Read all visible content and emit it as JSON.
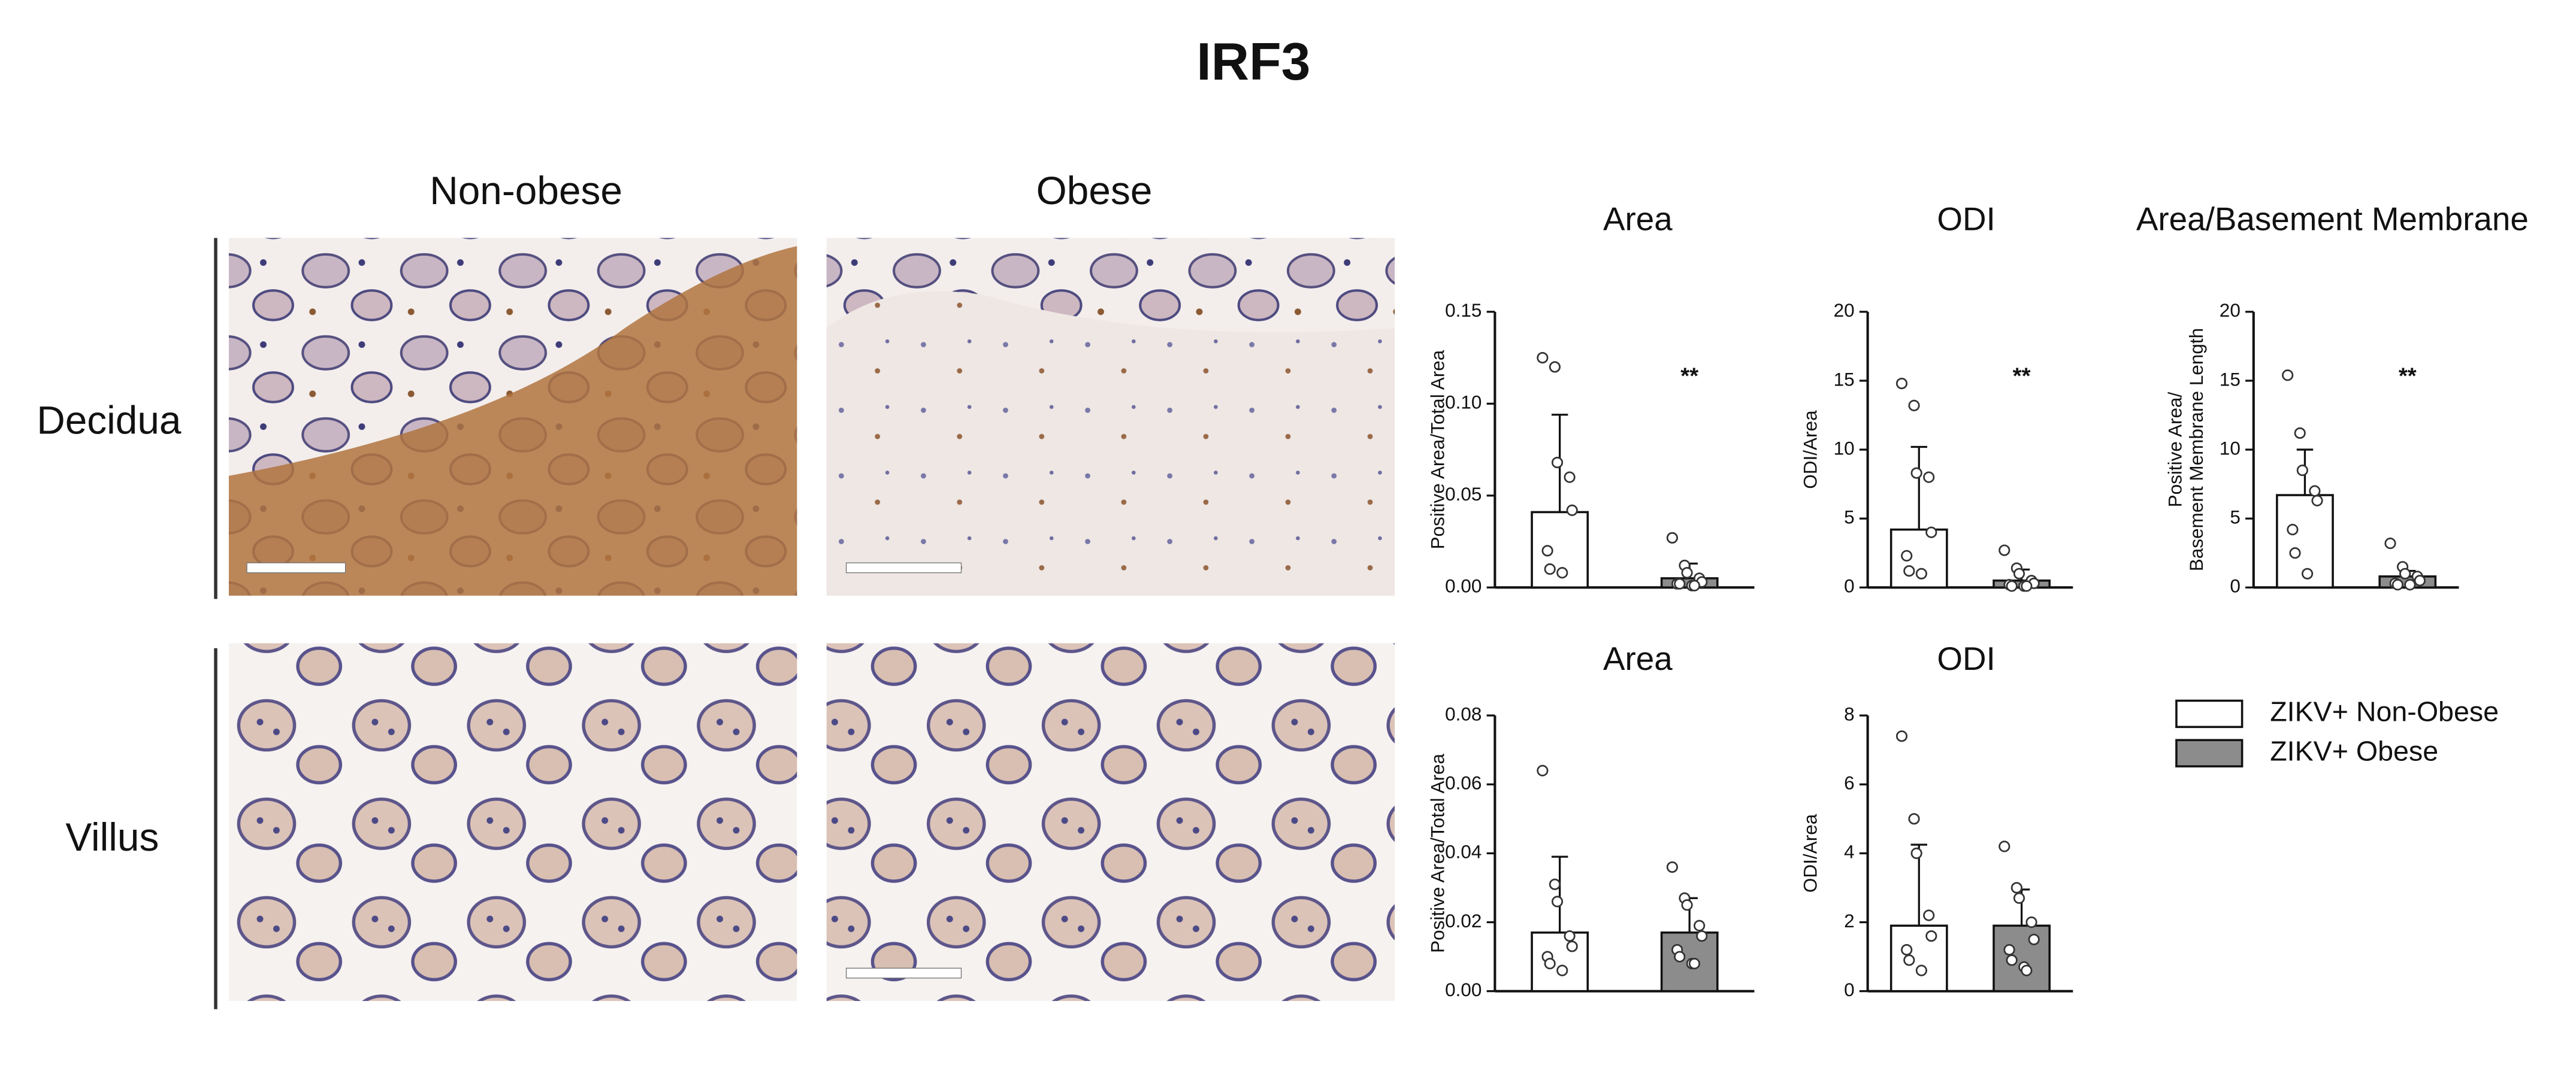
{
  "title": "IRF3",
  "columns": [
    "Non-obese",
    "Obese"
  ],
  "rows": [
    "Decidua",
    "Villus"
  ],
  "legend": [
    {
      "name": "ZIKV+ Non-Obese",
      "color": "#ffffff"
    },
    {
      "name": "ZIKV+ Obese",
      "color": "#8c8c8c"
    }
  ],
  "chart_data": [
    {
      "type": "bar",
      "title": "Area",
      "ylabel": "Positive Area/Total Area",
      "categories": [
        null,
        null
      ],
      "values": [
        0.041,
        0.005
      ],
      "errors": [
        0.053,
        0.008
      ],
      "points": [
        [
          0.125,
          0.12,
          0.068,
          0.06,
          0.042,
          0.02,
          0.01,
          0.008
        ],
        [
          0.027,
          0.012,
          0.008,
          0.005,
          0.003,
          0.002,
          0.002,
          0.001,
          0.001
        ]
      ],
      "annotation": "**",
      "ylim": [
        0,
        0.15
      ],
      "yticks": [
        {
          "value": 0,
          "label": "0.00"
        },
        {
          "value": 0.05,
          "label": "0.05"
        },
        {
          "value": 0.1,
          "label": "0.10"
        },
        {
          "value": 0.15,
          "label": "0.15"
        }
      ]
    },
    {
      "type": "bar",
      "title": "ODI",
      "ylabel": "ODI/Area",
      "categories": [
        null,
        null
      ],
      "values": [
        4.2,
        0.5
      ],
      "errors": [
        6.0,
        0.8
      ],
      "points": [
        [
          14.8,
          13.2,
          8.3,
          8.0,
          4.0,
          2.3,
          1.2,
          1.0
        ],
        [
          2.7,
          1.4,
          1.0,
          0.5,
          0.3,
          0.2,
          0.1,
          0.1,
          0.1
        ]
      ],
      "annotation": "**",
      "ylim": [
        0,
        20
      ],
      "yticks": [
        0,
        5,
        10,
        15,
        20
      ]
    },
    {
      "type": "bar",
      "title": "Area/Basement Membrane",
      "ylabel": [
        "Positive Area/",
        "Basement Membrane Length"
      ],
      "categories": [
        null,
        null
      ],
      "values": [
        6.7,
        0.8
      ],
      "errors": [
        3.3,
        0.4
      ],
      "points": [
        [
          15.4,
          11.2,
          8.5,
          7.0,
          6.3,
          4.2,
          2.5,
          1.0
        ],
        [
          3.2,
          1.5,
          1.0,
          0.8,
          0.5,
          0.3,
          0.2,
          0.2
        ]
      ],
      "annotation": "**",
      "ylim": [
        0,
        20
      ],
      "yticks": [
        0,
        5,
        10,
        15,
        20
      ]
    },
    {
      "type": "bar",
      "title": "Area",
      "ylabel": "Positive Area/Total Area",
      "categories": [
        null,
        null
      ],
      "values": [
        0.017,
        0.017
      ],
      "errors": [
        0.022,
        0.01
      ],
      "points": [
        [
          0.064,
          0.031,
          0.026,
          0.016,
          0.013,
          0.01,
          0.008,
          0.006
        ],
        [
          0.036,
          0.027,
          0.025,
          0.019,
          0.016,
          0.012,
          0.01,
          0.008,
          0.008
        ]
      ],
      "ylim": [
        0,
        0.08
      ],
      "yticks": [
        {
          "value": 0,
          "label": "0.00"
        },
        {
          "value": 0.02,
          "label": "0.02"
        },
        {
          "value": 0.04,
          "label": "0.04"
        },
        {
          "value": 0.06,
          "label": "0.06"
        },
        {
          "value": 0.08,
          "label": "0.08"
        }
      ]
    },
    {
      "type": "bar",
      "title": "ODI",
      "ylabel": "ODI/Area",
      "categories": [
        null,
        null
      ],
      "values": [
        1.9,
        1.9
      ],
      "errors": [
        2.35,
        1.05
      ],
      "points": [
        [
          7.4,
          5.0,
          4.0,
          2.2,
          1.6,
          1.2,
          0.9,
          0.6
        ],
        [
          4.2,
          3.0,
          2.7,
          2.0,
          1.5,
          1.2,
          0.9,
          0.7,
          0.6
        ]
      ],
      "ylim": [
        0,
        8
      ],
      "yticks": [
        0,
        2,
        4,
        6,
        8
      ]
    }
  ]
}
